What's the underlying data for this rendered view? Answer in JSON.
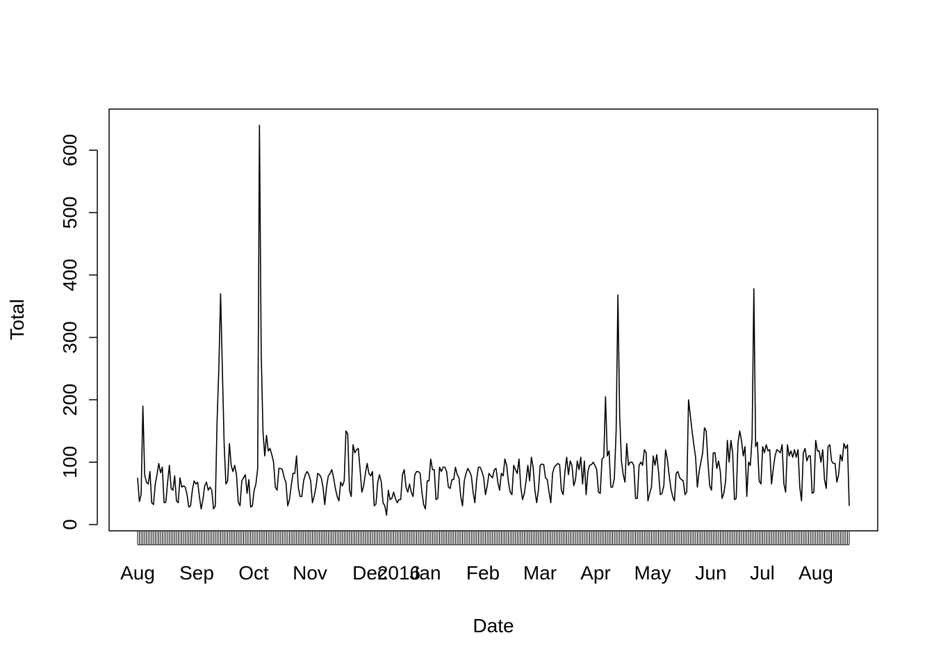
{
  "chart_data": {
    "type": "line",
    "title": "",
    "xlabel": "Date",
    "ylabel": "Total",
    "ylim": [
      0,
      650
    ],
    "yticks": [
      0,
      100,
      200,
      300,
      400,
      500,
      600
    ],
    "xticks": [
      "Aug",
      "Sep",
      "Oct",
      "Nov",
      "Dec",
      "2016",
      "Jan",
      "Feb",
      "Mar",
      "Apr",
      "May",
      "Jun",
      "Jul",
      "Aug"
    ],
    "x_start": "2015-08-01",
    "x_end": "2016-08-31",
    "series": [
      {
        "name": "",
        "color": "#000000",
        "values": [
          75,
          37,
          48,
          190,
          80,
          68,
          65,
          85,
          35,
          32,
          65,
          80,
          98,
          83,
          92,
          35,
          36,
          68,
          95,
          58,
          55,
          78,
          38,
          35,
          75,
          60,
          62,
          60,
          48,
          28,
          30,
          55,
          70,
          65,
          68,
          45,
          25,
          40,
          62,
          68,
          55,
          60,
          55,
          25,
          30,
          165,
          250,
          370,
          250,
          130,
          65,
          70,
          130,
          95,
          85,
          95,
          80,
          36,
          30,
          70,
          75,
          80,
          50,
          72,
          28,
          30,
          55,
          65,
          90,
          640,
          275,
          150,
          110,
          143,
          118,
          122,
          112,
          100,
          60,
          55,
          90,
          90,
          88,
          75,
          68,
          30,
          40,
          62,
          82,
          82,
          110,
          60,
          45,
          45,
          70,
          80,
          85,
          80,
          70,
          35,
          45,
          60,
          82,
          80,
          75,
          60,
          32,
          60,
          78,
          82,
          88,
          75,
          58,
          45,
          38,
          68,
          62,
          70,
          150,
          145,
          55,
          45,
          128,
          115,
          120,
          122,
          88,
          52,
          62,
          82,
          98,
          82,
          78,
          85,
          30,
          33,
          68,
          80,
          68,
          35,
          30,
          15,
          55,
          40,
          42,
          52,
          42,
          35,
          40,
          40,
          80,
          88,
          60,
          52,
          65,
          52,
          45,
          80,
          85,
          85,
          82,
          52,
          32,
          25,
          70,
          70,
          105,
          88,
          88,
          40,
          42,
          92,
          85,
          92,
          92,
          85,
          60,
          58,
          72,
          72,
          92,
          80,
          75,
          45,
          30,
          70,
          82,
          90,
          85,
          78,
          52,
          35,
          72,
          92,
          92,
          85,
          75,
          48,
          62,
          82,
          78,
          75,
          88,
          90,
          68,
          55,
          82,
          78,
          105,
          95,
          68,
          52,
          48,
          95,
          88,
          82,
          105,
          60,
          40,
          50,
          70,
          95,
          70,
          108,
          92,
          55,
          35,
          55,
          95,
          97,
          96,
          75,
          72,
          52,
          35,
          82,
          92,
          95,
          98,
          96,
          55,
          48,
          85,
          108,
          80,
          102,
          95,
          62,
          72,
          102,
          88,
          108,
          65,
          102,
          48,
          85,
          95,
          96,
          100,
          95,
          88,
          52,
          50,
          105,
          108,
          205,
          110,
          118,
          60,
          60,
          75,
          150,
          368,
          175,
          102,
          80,
          68,
          130,
          95,
          100,
          100,
          95,
          42,
          42,
          95,
          100,
          95,
          120,
          115,
          38,
          50,
          60,
          110,
          95,
          112,
          85,
          48,
          50,
          62,
          120,
          105,
          80,
          58,
          45,
          38,
          82,
          85,
          75,
          72,
          70,
          48,
          52,
          200,
          175,
          150,
          128,
          108,
          60,
          85,
          100,
          115,
          155,
          150,
          100,
          62,
          55,
          115,
          115,
          90,
          102,
          85,
          42,
          50,
          70,
          135,
          100,
          135,
          115,
          40,
          42,
          130,
          150,
          135,
          110,
          125,
          45,
          100,
          95,
          140,
          378,
          125,
          132,
          70,
          65,
          125,
          115,
          128,
          118,
          120,
          65,
          90,
          110,
          120,
          118,
          115,
          128,
          65,
          52,
          128,
          110,
          118,
          108,
          120,
          108,
          120,
          60,
          38,
          115,
          122,
          102,
          110,
          110,
          50,
          52,
          135,
          118,
          118,
          100,
          120,
          72,
          58,
          125,
          128,
          102,
          98,
          98,
          68,
          80,
          112,
          102,
          130,
          122,
          128,
          30
        ]
      }
    ]
  }
}
